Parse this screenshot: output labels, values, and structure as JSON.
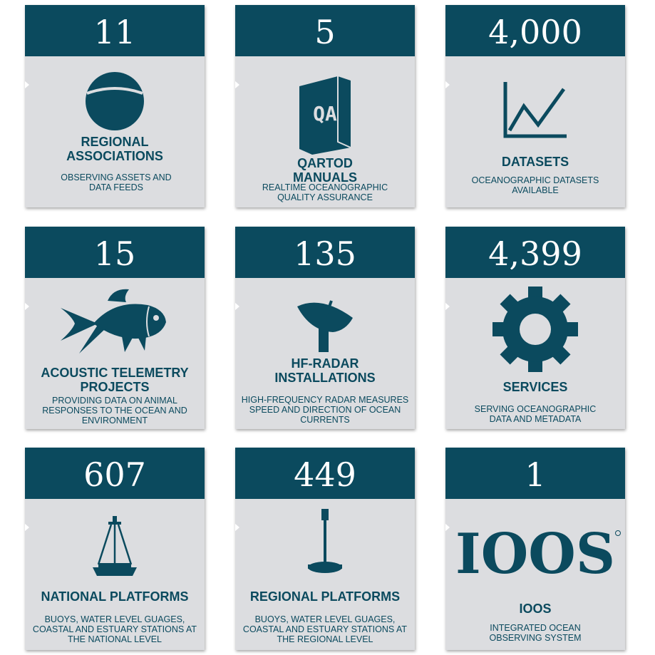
{
  "colors": {
    "band": "#0b4a5e",
    "card": "#dcdde0",
    "text": "#0b4a5e"
  },
  "cards": [
    {
      "number": "11",
      "title": "REGIONAL ASSOCIATIONS",
      "desc": "OBSERVING ASSETS AND DATA FEEDS",
      "icon": "globe-icon"
    },
    {
      "number": "5",
      "title": "QARTOD MANUALS",
      "desc": "REALTIME OCEANOGRAPHIC QUALITY ASSURANCE",
      "icon": "manual-icon",
      "icon_text": "QA"
    },
    {
      "number": "4,000",
      "title": "DATASETS",
      "desc": "OCEANOGRAPHIC DATASETS AVAILABLE",
      "icon": "line-chart-icon"
    },
    {
      "number": "15",
      "title": "ACOUSTIC TELEMETRY PROJECTS",
      "desc": "PROVIDING DATA ON ANIMAL RESPONSES TO THE OCEAN AND ENVIRONMENT",
      "icon": "fish-icon"
    },
    {
      "number": "135",
      "title": "HF-RADAR INSTALLATIONS",
      "desc": "HIGH-FREQUENCY RADAR MEASURES SPEED AND DIRECTION OF OCEAN CURRENTS",
      "icon": "radar-dish-icon"
    },
    {
      "number": "4,399",
      "title": "SERVICES",
      "desc": "SERVING OCEANOGRAPHIC DATA AND METADATA",
      "icon": "gear-icon"
    },
    {
      "number": "607",
      "title": "NATIONAL PLATFORMS",
      "desc": "BUOYS, WATER LEVEL GUAGES, COASTAL AND ESTUARY STATIONS AT THE NATIONAL LEVEL",
      "icon": "buoy-icon"
    },
    {
      "number": "449",
      "title": "REGIONAL PLATFORMS",
      "desc": "BUOYS, WATER LEVEL GUAGES, COASTAL AND ESTUARY STATIONS AT THE REGIONAL LEVEL",
      "icon": "water-level-gauge-icon"
    },
    {
      "number": "1",
      "title": "IOOS",
      "desc": "INTEGRATED OCEAN OBSERVING SYSTEM",
      "icon": "ioos-logo-icon",
      "logo_text": "IOOS"
    }
  ]
}
